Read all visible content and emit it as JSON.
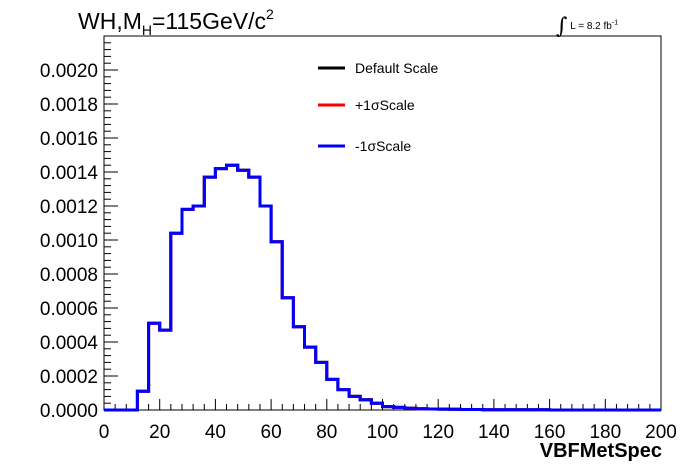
{
  "header": {
    "title_main": "WH,M",
    "title_sub": "H",
    "title_rest": "=115GeV/c",
    "title_sup": "2",
    "lumi_symbol": "∫",
    "lumi_text": "L = 8.2 fb",
    "lumi_exp": "-1"
  },
  "colors": {
    "default_scale": "#000000",
    "plus_sigma": "#ff0000",
    "minus_sigma": "#0000ff"
  },
  "chart_data": {
    "type": "line",
    "xlabel": "VBFMetSpec",
    "xlim": [
      0,
      200
    ],
    "ylim": [
      0,
      0.0022
    ],
    "x_ticks": [
      "0",
      "20",
      "40",
      "60",
      "80",
      "100",
      "120",
      "140",
      "160",
      "180",
      "200"
    ],
    "y_ticks": [
      "0.0000",
      "0.0002",
      "0.0004",
      "0.0006",
      "0.0008",
      "0.0010",
      "0.0012",
      "0.0014",
      "0.0016",
      "0.0018",
      "0.0020"
    ],
    "legend_position": "top-center",
    "bin_edges": [
      0,
      4,
      8,
      12,
      16,
      20,
      24,
      28,
      32,
      36,
      40,
      44,
      48,
      52,
      56,
      60,
      64,
      68,
      72,
      76,
      80,
      84,
      88,
      92,
      96,
      100,
      104,
      108,
      112,
      116,
      120,
      124,
      128,
      132,
      136,
      140,
      144,
      148,
      152,
      156,
      160,
      164,
      168,
      172,
      176,
      180,
      184,
      188,
      192,
      196,
      200
    ],
    "series": [
      {
        "name": "Default Scale",
        "values": [
          0,
          0,
          0,
          0.00011,
          0.00051,
          0.00047,
          0.00104,
          0.00118,
          0.0012,
          0.00137,
          0.00142,
          0.00144,
          0.00141,
          0.00137,
          0.0012,
          0.00099,
          0.00066,
          0.00049,
          0.00037,
          0.00028,
          0.00018,
          0.00012,
          8e-05,
          6e-05,
          4e-05,
          2e-05,
          1.5e-05,
          1e-05,
          7e-06,
          6e-06,
          5e-06,
          4e-06,
          3e-06,
          3e-06,
          2e-06,
          2e-06,
          2e-06,
          1e-06,
          1e-06,
          1e-06,
          0,
          0,
          0,
          0,
          0,
          0,
          0,
          0,
          0,
          0
        ]
      },
      {
        "name": "+1σScale",
        "values": [
          0,
          0,
          0,
          0.00011,
          0.00051,
          0.00047,
          0.00104,
          0.00118,
          0.0012,
          0.00137,
          0.00142,
          0.00144,
          0.00141,
          0.00137,
          0.0012,
          0.00099,
          0.00066,
          0.00049,
          0.00037,
          0.00028,
          0.00018,
          0.00012,
          8e-05,
          6e-05,
          4e-05,
          2e-05,
          1.5e-05,
          1e-05,
          7e-06,
          6e-06,
          5e-06,
          4e-06,
          3e-06,
          3e-06,
          2e-06,
          2e-06,
          2e-06,
          1e-06,
          1e-06,
          1e-06,
          0,
          0,
          0,
          0,
          0,
          0,
          0,
          0,
          0,
          0
        ]
      },
      {
        "name": "-1σScale",
        "values": [
          0,
          0,
          0,
          0.00011,
          0.00051,
          0.00047,
          0.00104,
          0.00118,
          0.0012,
          0.00137,
          0.00142,
          0.00144,
          0.00141,
          0.00137,
          0.0012,
          0.00099,
          0.00066,
          0.00049,
          0.00037,
          0.00028,
          0.00018,
          0.00012,
          8e-05,
          6e-05,
          4e-05,
          2e-05,
          1.5e-05,
          1e-05,
          7e-06,
          6e-06,
          5e-06,
          4e-06,
          3e-06,
          3e-06,
          2e-06,
          2e-06,
          2e-06,
          1e-06,
          1e-06,
          1e-06,
          0,
          0,
          0,
          0,
          0,
          0,
          0,
          0,
          0,
          0
        ]
      }
    ]
  }
}
